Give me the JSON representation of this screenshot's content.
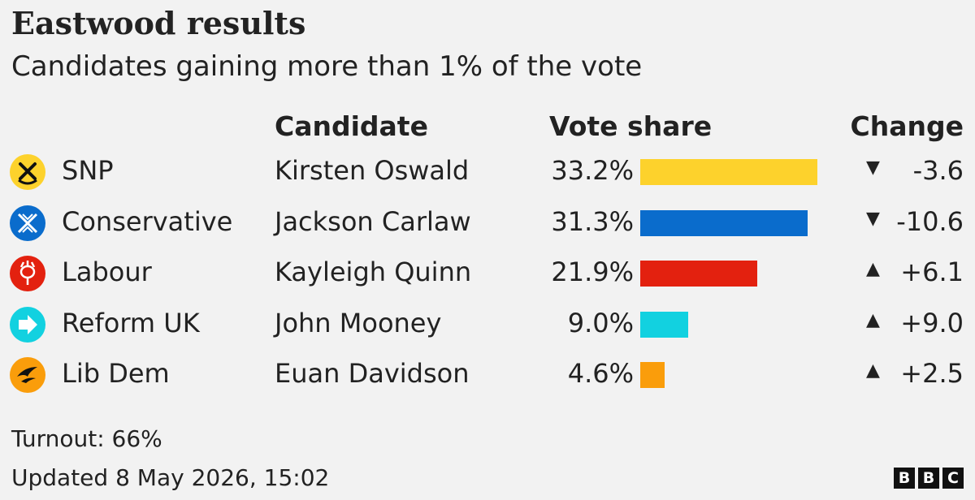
{
  "header": {
    "title": "Eastwood results",
    "subtitle": "Candidates gaining more than 1% of the vote"
  },
  "columns": {
    "candidate": "Candidate",
    "vote_share": "Vote share",
    "change": "Change"
  },
  "chart_data": {
    "type": "table",
    "title": "Eastwood results",
    "subtitle": "Candidates gaining more than 1% of the vote",
    "xlim": [
      0,
      33.2
    ],
    "rows": [
      {
        "party": "SNP",
        "candidate": "Kirsten Oswald",
        "share": 33.2,
        "share_label": "33.2%",
        "change": -3.6,
        "change_label": "-3.6",
        "color": "#fdd22c",
        "icon": "snp-logo-icon"
      },
      {
        "party": "Conservative",
        "candidate": "Jackson Carlaw",
        "share": 31.3,
        "share_label": "31.3%",
        "change": -10.6,
        "change_label": "-10.6",
        "color": "#0a6ccc",
        "icon": "conservative-logo-icon"
      },
      {
        "party": "Labour",
        "candidate": "Kayleigh Quinn",
        "share": 21.9,
        "share_label": "21.9%",
        "change": 6.1,
        "change_label": "+6.1",
        "color": "#e3210f",
        "icon": "labour-logo-icon"
      },
      {
        "party": "Reform UK",
        "candidate": "John Mooney",
        "share": 9.0,
        "share_label": "9.0%",
        "change": 9.0,
        "change_label": "+9.0",
        "color": "#12d1e0",
        "icon": "reform-logo-icon"
      },
      {
        "party": "Lib Dem",
        "candidate": "Euan Davidson",
        "share": 4.6,
        "share_label": "4.6%",
        "change": 2.5,
        "change_label": "+2.5",
        "color": "#fa9d0b",
        "icon": "libdem-logo-icon"
      }
    ]
  },
  "footer": {
    "turnout": "Turnout: 66%",
    "updated": "Updated 8 May 2026, 15:02",
    "logo_letters": [
      "B",
      "B",
      "C"
    ]
  }
}
